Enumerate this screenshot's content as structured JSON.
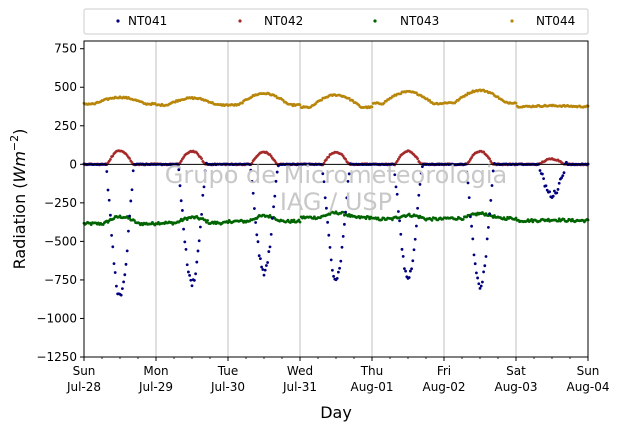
{
  "chart_data": {
    "type": "scatter",
    "xlabel": "Day",
    "ylabel_main": "Radiation (",
    "ylabel_unit": "Wm",
    "ylabel_exp": "−2",
    "ylabel_close": ")",
    "ylim": [
      -1250,
      800
    ],
    "yticks": [
      -1250,
      -1000,
      -750,
      -500,
      -250,
      0,
      250,
      500,
      750
    ],
    "ytick_labels": [
      "−1250",
      "−1000",
      "−750",
      "−500",
      "−250",
      "0",
      "250",
      "500",
      "750"
    ],
    "xlim_days": [
      0,
      7
    ],
    "xticks": [
      {
        "day": 0,
        "line1": "Sun",
        "line2": "Jul-28"
      },
      {
        "day": 1,
        "line1": "Mon",
        "line2": "Jul-29"
      },
      {
        "day": 2,
        "line1": "Tue",
        "line2": "Jul-30"
      },
      {
        "day": 3,
        "line1": "Wed",
        "line2": "Jul-31"
      },
      {
        "day": 4,
        "line1": "Thu",
        "line2": "Aug-01"
      },
      {
        "day": 5,
        "line1": "Fri",
        "line2": "Aug-02"
      },
      {
        "day": 6,
        "line1": "Sat",
        "line2": "Aug-03"
      },
      {
        "day": 7,
        "line1": "Sun",
        "line2": "Aug-04"
      }
    ],
    "grid": "vertical",
    "zero_line": true,
    "legend_position": "top",
    "watermark_line1": "Grupo de Micrometeorologia",
    "watermark_line2": "IAG / USP",
    "series": [
      {
        "name": "NT041",
        "color": "#00007f",
        "baseline": 0,
        "daily_minimum": [
          -860,
          -770,
          -700,
          -740,
          -735,
          -790,
          -200,
          0
        ]
      },
      {
        "name": "NT042",
        "color": "#a52a2a",
        "baseline": 0,
        "daily_maximum": [
          90,
          85,
          80,
          80,
          85,
          85,
          35,
          0
        ]
      },
      {
        "name": "NT043",
        "color": "#006400",
        "night_level": [
          -385,
          -380,
          -370,
          -345,
          -355,
          -350,
          -365,
          -365
        ],
        "day_peak": [
          -340,
          -345,
          -335,
          -315,
          -330,
          -320,
          -360,
          -365
        ]
      },
      {
        "name": "NT044",
        "color": "#b8860b",
        "night_level": [
          392,
          385,
          385,
          370,
          395,
          400,
          375,
          365
        ],
        "day_peak": [
          435,
          430,
          460,
          450,
          470,
          480,
          380,
          365
        ]
      }
    ]
  }
}
